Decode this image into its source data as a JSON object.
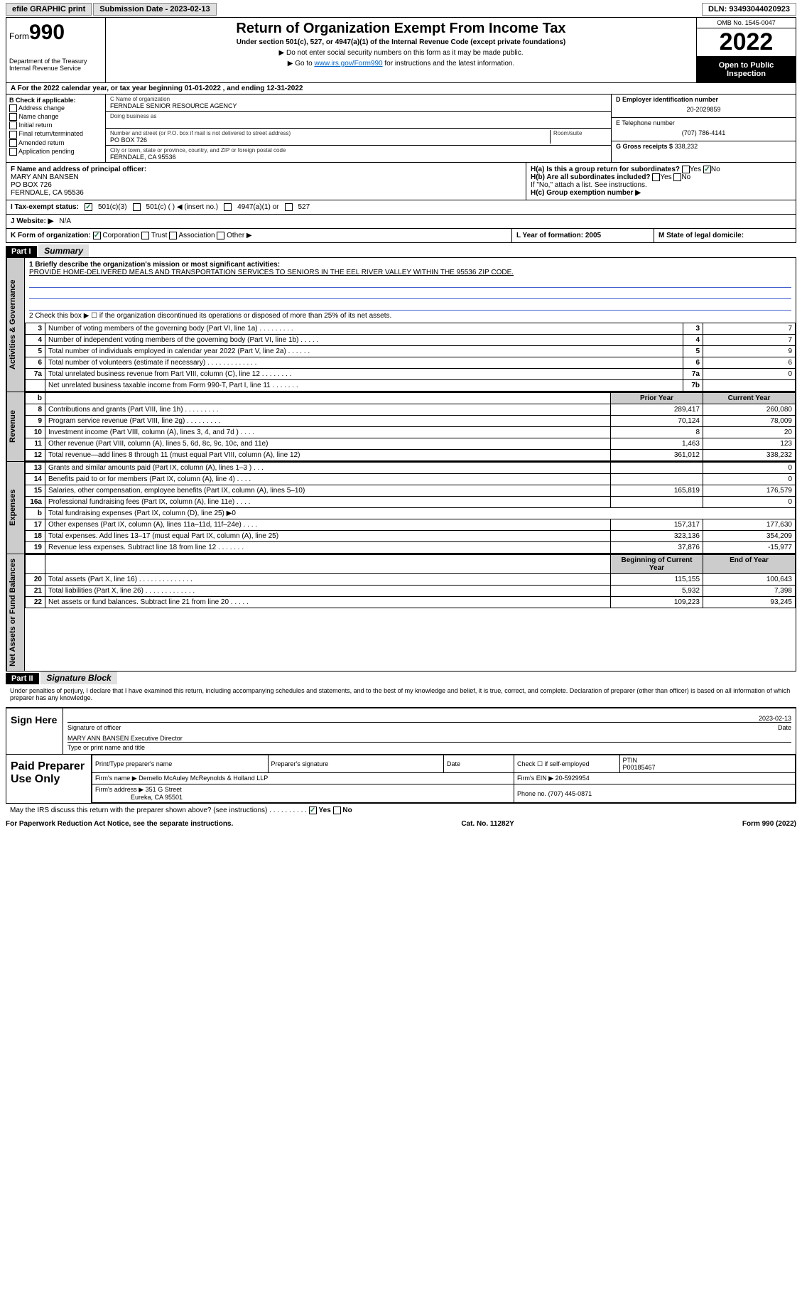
{
  "topbar": {
    "efile": "efile GRAPHIC print",
    "submission": "Submission Date - 2023-02-13",
    "dln": "DLN: 93493044020923"
  },
  "header": {
    "form_prefix": "Form",
    "form_number": "990",
    "dept": "Department of the Treasury\nInternal Revenue Service",
    "title": "Return of Organization Exempt From Income Tax",
    "subtitle": "Under section 501(c), 527, or 4947(a)(1) of the Internal Revenue Code (except private foundations)",
    "note1": "▶ Do not enter social security numbers on this form as it may be made public.",
    "note2_pre": "▶ Go to ",
    "note2_link": "www.irs.gov/Form990",
    "note2_post": " for instructions and the latest information.",
    "omb": "OMB No. 1545-0047",
    "year": "2022",
    "open": "Open to Public Inspection"
  },
  "row_a": "A For the 2022 calendar year, or tax year beginning 01-01-2022    , and ending 12-31-2022",
  "col_b": {
    "label": "B Check if applicable:",
    "items": [
      "Address change",
      "Name change",
      "Initial return",
      "Final return/terminated",
      "Amended return",
      "Application pending"
    ]
  },
  "col_c": {
    "name_label": "C Name of organization",
    "name": "FERNDALE SENIOR RESOURCE AGENCY",
    "dba": "Doing business as",
    "addr_label": "Number and street (or P.O. box if mail is not delivered to street address)",
    "room": "Room/suite",
    "addr": "PO BOX 726",
    "city_label": "City or town, state or province, country, and ZIP or foreign postal code",
    "city": "FERNDALE, CA  95536"
  },
  "col_d": {
    "ein_label": "D Employer identification number",
    "ein": "20-2029859",
    "phone_label": "E Telephone number",
    "phone": "(707) 786-4141",
    "gross_label": "G Gross receipts $",
    "gross": "338,232"
  },
  "row_f": {
    "label": "F Name and address of principal officer:",
    "name": "MARY ANN BANSEN",
    "addr": "PO BOX 726",
    "city": "FERNDALE, CA  95536"
  },
  "row_h": {
    "ha": "H(a)  Is this a group return for subordinates?",
    "ha_yes": "Yes",
    "ha_no": "No",
    "hb": "H(b)  Are all subordinates included?",
    "hb_yes": "Yes",
    "hb_no": "No",
    "hb_note": "If \"No,\" attach a list. See instructions.",
    "hc": "H(c)  Group exemption number ▶"
  },
  "row_i": {
    "label": "I   Tax-exempt status:",
    "opt1": "501(c)(3)",
    "opt2": "501(c) (  ) ◀ (insert no.)",
    "opt3": "4947(a)(1) or",
    "opt4": "527"
  },
  "row_j": {
    "label": "J   Website: ▶",
    "value": "N/A"
  },
  "row_k": {
    "label": "K Form of organization:",
    "opts": [
      "Corporation",
      "Trust",
      "Association",
      "Other ▶"
    ],
    "l": "L Year of formation: 2005",
    "m": "M State of legal domicile:"
  },
  "part1": {
    "hdr": "Part I",
    "title": "Summary",
    "line1_label": "1   Briefly describe the organization's mission or most significant activities:",
    "line1_text": "PROVIDE HOME-DELIVERED MEALS AND TRANSPORTATION SERVICES TO SENIORS IN THE EEL RIVER VALLEY WITHIN THE 95536 ZIP CODE.",
    "line2": "2   Check this box ▶ ☐  if the organization discontinued its operations or disposed of more than 25% of its net assets.",
    "sections": {
      "gov": "Activities & Governance",
      "rev": "Revenue",
      "exp": "Expenses",
      "net": "Net Assets or Fund Balances"
    },
    "gov_rows": [
      {
        "n": "3",
        "t": "Number of voting members of the governing body (Part VI, line 1a)  .    .    .    .    .    .    .    .    .",
        "k": "3",
        "v": "7"
      },
      {
        "n": "4",
        "t": "Number of independent voting members of the governing body (Part VI, line 1b)  .    .    .    .    .",
        "k": "4",
        "v": "7"
      },
      {
        "n": "5",
        "t": "Total number of individuals employed in calendar year 2022 (Part V, line 2a)  .    .    .    .    .    .",
        "k": "5",
        "v": "9"
      },
      {
        "n": "6",
        "t": "Total number of volunteers (estimate if necessary)  .    .    .    .    .    .    .    .    .    .    .    .    .",
        "k": "6",
        "v": "6"
      },
      {
        "n": "7a",
        "t": "Total unrelated business revenue from Part VIII, column (C), line 12  .    .    .    .    .    .    .    .",
        "k": "7a",
        "v": "0"
      },
      {
        "n": "",
        "t": "Net unrelated business taxable income from Form 990-T, Part I, line 11  .    .    .    .    .    .    .",
        "k": "7b",
        "v": ""
      }
    ],
    "yr_hdr": {
      "b": "b",
      "prior": "Prior Year",
      "curr": "Current Year"
    },
    "rev_rows": [
      {
        "n": "8",
        "t": "Contributions and grants (Part VIII, line 1h)  .    .    .    .    .    .    .    .    .",
        "p": "289,417",
        "c": "260,080"
      },
      {
        "n": "9",
        "t": "Program service revenue (Part VIII, line 2g)  .    .    .    .    .    .    .    .    .",
        "p": "70,124",
        "c": "78,009"
      },
      {
        "n": "10",
        "t": "Investment income (Part VIII, column (A), lines 3, 4, and 7d )  .    .    .    .",
        "p": "8",
        "c": "20"
      },
      {
        "n": "11",
        "t": "Other revenue (Part VIII, column (A), lines 5, 6d, 8c, 9c, 10c, and 11e)",
        "p": "1,463",
        "c": "123"
      },
      {
        "n": "12",
        "t": "Total revenue—add lines 8 through 11 (must equal Part VIII, column (A), line 12)",
        "p": "361,012",
        "c": "338,232"
      }
    ],
    "exp_rows": [
      {
        "n": "13",
        "t": "Grants and similar amounts paid (Part IX, column (A), lines 1–3 )  .    .    .",
        "p": "",
        "c": "0"
      },
      {
        "n": "14",
        "t": "Benefits paid to or for members (Part IX, column (A), line 4)  .    .    .    .",
        "p": "",
        "c": "0"
      },
      {
        "n": "15",
        "t": "Salaries, other compensation, employee benefits (Part IX, column (A), lines 5–10)",
        "p": "165,819",
        "c": "176,579"
      },
      {
        "n": "16a",
        "t": "Professional fundraising fees (Part IX, column (A), line 11e)  .    .    .    .",
        "p": "",
        "c": "0"
      },
      {
        "n": "b",
        "t": "Total fundraising expenses (Part IX, column (D), line 25) ▶0",
        "p": "",
        "c": ""
      },
      {
        "n": "17",
        "t": "Other expenses (Part IX, column (A), lines 11a–11d, 11f–24e)  .    .    .    .",
        "p": "157,317",
        "c": "177,630"
      },
      {
        "n": "18",
        "t": "Total expenses. Add lines 13–17 (must equal Part IX, column (A), line 25)",
        "p": "323,136",
        "c": "354,209"
      },
      {
        "n": "19",
        "t": "Revenue less expenses. Subtract line 18 from line 12  .    .    .    .    .    .    .",
        "p": "37,876",
        "c": "-15,977"
      }
    ],
    "net_hdr": {
      "b": "Beginning of Current Year",
      "e": "End of Year"
    },
    "net_rows": [
      {
        "n": "20",
        "t": "Total assets (Part X, line 16)  .    .    .    .    .    .    .    .    .    .    .    .    .    .",
        "p": "115,155",
        "c": "100,643"
      },
      {
        "n": "21",
        "t": "Total liabilities (Part X, line 26)  .    .    .    .    .    .    .    .    .    .    .    .    .",
        "p": "5,932",
        "c": "7,398"
      },
      {
        "n": "22",
        "t": "Net assets or fund balances. Subtract line 21 from line 20  .    .    .    .    .",
        "p": "109,223",
        "c": "93,245"
      }
    ]
  },
  "part2": {
    "hdr": "Part II",
    "title": "Signature Block",
    "note": "Under penalties of perjury, I declare that I have examined this return, including accompanying schedules and statements, and to the best of my knowledge and belief, it is true, correct, and complete. Declaration of preparer (other than officer) is based on all information of which preparer has any knowledge.",
    "sign_here": "Sign Here",
    "sig_officer": "Signature of officer",
    "sig_date_label": "Date",
    "sig_date": "2023-02-13",
    "sig_name": "MARY ANN BANSEN  Executive Director",
    "sig_name_label": "Type or print name and title",
    "paid": "Paid Preparer Use Only",
    "pp_name_label": "Print/Type preparer's name",
    "pp_sig_label": "Preparer's signature",
    "pp_date_label": "Date",
    "pp_check": "Check ☐ if self-employed",
    "pp_ptin_label": "PTIN",
    "pp_ptin": "P00185467",
    "firm_name_label": "Firm's name     ▶",
    "firm_name": "Demello McAuley McReynolds & Holland LLP",
    "firm_ein_label": "Firm's EIN ▶",
    "firm_ein": "20-5929954",
    "firm_addr_label": "Firm's address ▶",
    "firm_addr": "351 G Street",
    "firm_city": "Eureka, CA  95501",
    "firm_phone_label": "Phone no.",
    "firm_phone": "(707) 445-0871",
    "may_irs": "May the IRS discuss this return with the preparer shown above? (see instructions)   .    .    .    .    .    .    .    .    .    .",
    "may_yes": "Yes",
    "may_no": "No"
  },
  "footer": {
    "left": "For Paperwork Reduction Act Notice, see the separate instructions.",
    "mid": "Cat. No. 11282Y",
    "right": "Form 990 (2022)"
  }
}
